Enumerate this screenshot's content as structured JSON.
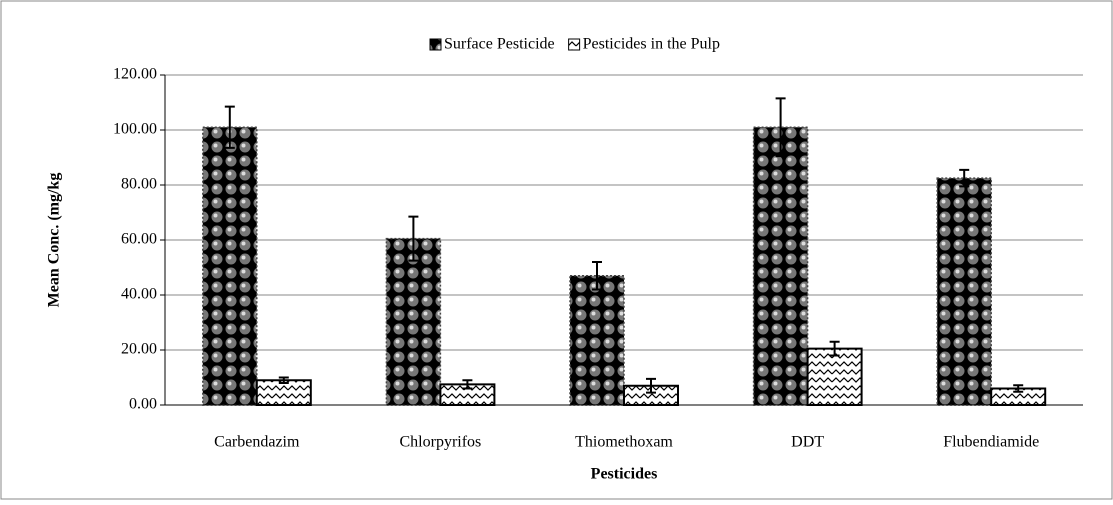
{
  "chart_data": {
    "type": "bar",
    "ylabel": "Mean Conc. (mg/kg",
    "xlabel": "Pesticides",
    "categories": [
      "Carbendazim",
      "Chlorpyrifos",
      "Thiomethoxam",
      "DDT",
      "Flubendiamide"
    ],
    "series": [
      {
        "name": "Surface Pesticide",
        "color": "#000000",
        "values": [
          101,
          60.5,
          47,
          101,
          82.5
        ],
        "errors": [
          7.5,
          8,
          5,
          10.5,
          3
        ]
      },
      {
        "name": "Pesticides in the Pulp",
        "color": "#ffffff",
        "values": [
          9,
          7.5,
          7,
          20.5,
          6
        ],
        "errors": [
          1,
          1.5,
          2.5,
          2.5,
          1.2
        ]
      }
    ],
    "ylim": [
      0,
      120
    ],
    "yticks": [
      {
        "value": 0,
        "label": "0.00"
      },
      {
        "value": 20,
        "label": "20.00"
      },
      {
        "value": 40,
        "label": "40.00"
      },
      {
        "value": 60,
        "label": "60.00"
      },
      {
        "value": 80,
        "label": "80.00"
      },
      {
        "value": 100,
        "label": "100.00"
      },
      {
        "value": 120,
        "label": "120.00"
      }
    ],
    "grid": true,
    "legend": "top"
  }
}
